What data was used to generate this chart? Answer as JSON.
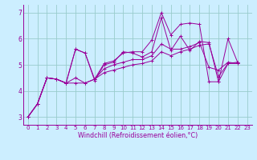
{
  "xlabel": "Windchill (Refroidissement éolien,°C)",
  "bg_color": "#cceeff",
  "line_color": "#990099",
  "xlim": [
    -0.5,
    23.5
  ],
  "ylim": [
    2.7,
    7.3
  ],
  "xticks": [
    0,
    1,
    2,
    3,
    4,
    5,
    6,
    7,
    8,
    9,
    10,
    11,
    12,
    13,
    14,
    15,
    16,
    17,
    18,
    19,
    20,
    21,
    22,
    23
  ],
  "yticks": [
    3,
    4,
    5,
    6,
    7
  ],
  "grid_color": "#99cccc",
  "series": [
    [
      3.0,
      3.5,
      4.5,
      4.45,
      4.3,
      5.6,
      5.45,
      4.4,
      5.0,
      5.1,
      5.5,
      5.45,
      5.3,
      5.5,
      6.8,
      5.55,
      6.1,
      5.55,
      5.9,
      5.85,
      4.35,
      5.05,
      5.1
    ],
    [
      3.0,
      3.5,
      4.5,
      4.45,
      4.3,
      4.5,
      4.3,
      4.45,
      4.85,
      5.0,
      5.1,
      5.2,
      5.2,
      5.35,
      5.8,
      5.6,
      5.6,
      5.7,
      5.85,
      4.9,
      4.8,
      5.1,
      5.05
    ],
    [
      3.0,
      3.5,
      4.5,
      4.45,
      4.3,
      5.6,
      5.45,
      4.45,
      5.05,
      5.15,
      5.45,
      5.5,
      5.5,
      5.95,
      7.0,
      6.15,
      6.55,
      6.6,
      6.55,
      4.35,
      4.35,
      6.0,
      5.1
    ],
    [
      3.0,
      3.5,
      4.5,
      4.45,
      4.3,
      4.3,
      4.3,
      4.45,
      4.7,
      4.8,
      4.9,
      5.0,
      5.05,
      5.15,
      5.5,
      5.35,
      5.5,
      5.6,
      5.75,
      5.8,
      4.55,
      5.05,
      5.05
    ]
  ],
  "xlabel_fontsize": 5.8,
  "tick_fontsize_x": 5.0,
  "tick_fontsize_y": 5.5
}
